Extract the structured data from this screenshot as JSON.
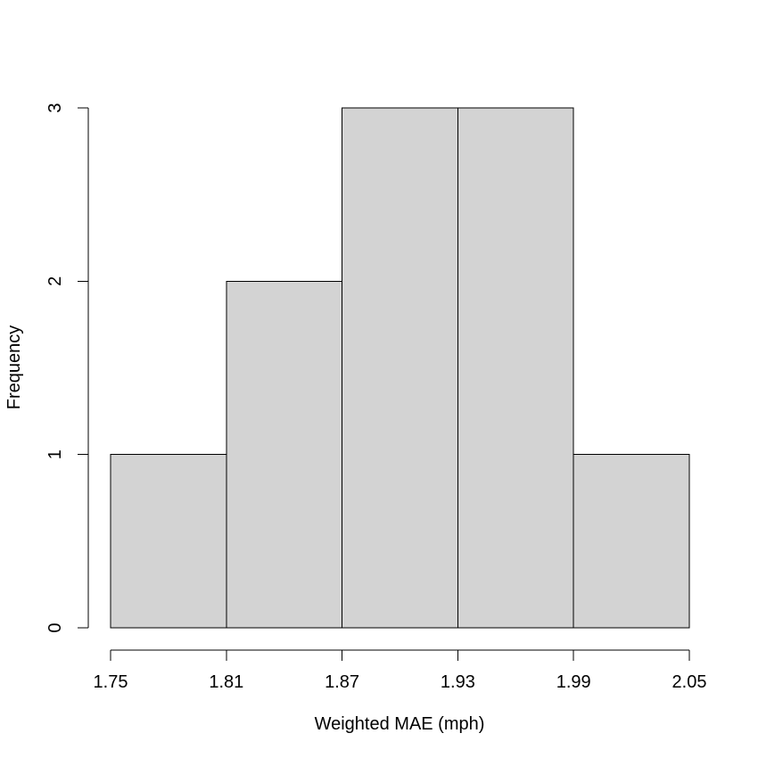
{
  "chart_data": {
    "type": "histogram",
    "title": "",
    "xlabel": "Weighted MAE (mph)",
    "ylabel": "Frequency",
    "bins": [
      {
        "start": 1.75,
        "end": 1.81,
        "count": 1
      },
      {
        "start": 1.81,
        "end": 1.87,
        "count": 2
      },
      {
        "start": 1.87,
        "end": 1.93,
        "count": 3
      },
      {
        "start": 1.93,
        "end": 1.99,
        "count": 3
      },
      {
        "start": 1.99,
        "end": 2.05,
        "count": 1
      }
    ],
    "x_ticks": [
      "1.75",
      "1.81",
      "1.87",
      "1.93",
      "1.99",
      "2.05"
    ],
    "y_ticks": [
      "0",
      "1",
      "2",
      "3"
    ],
    "xlim": [
      1.75,
      2.05
    ],
    "ylim": [
      0,
      3
    ],
    "bar_fill": "#d3d3d3",
    "bar_stroke": "#000000",
    "grid": false,
    "legend": "none"
  }
}
